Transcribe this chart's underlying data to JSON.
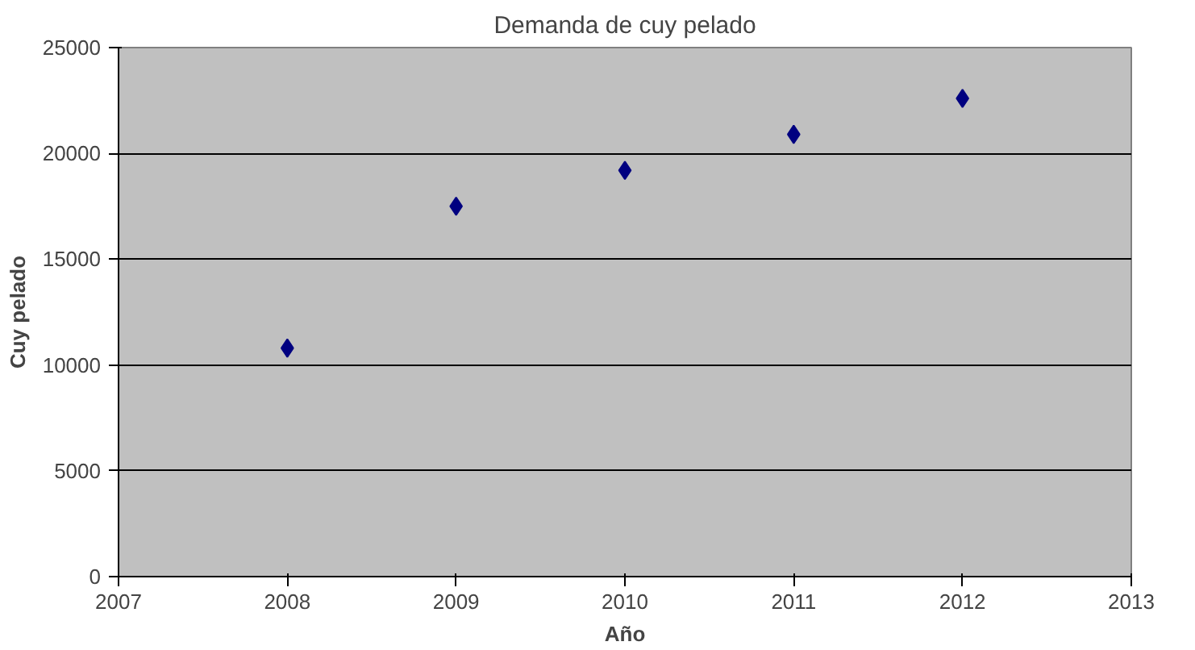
{
  "chart_data": {
    "type": "scatter",
    "title": "Demanda de cuy pelado",
    "xlabel": "Año",
    "ylabel": "Cuy pelado",
    "x": [
      2008,
      2009,
      2010,
      2011,
      2012
    ],
    "series": [
      {
        "color": "#000080",
        "values": [
          10800,
          17500,
          19200,
          20900,
          22600
        ]
      }
    ],
    "xlim": [
      2007,
      2013
    ],
    "xticks": [
      2007,
      2008,
      2009,
      2010,
      2011,
      2012,
      2013
    ],
    "ylim": [
      0,
      25000
    ],
    "yticks": [
      0,
      5000,
      10000,
      15000,
      20000,
      25000
    ],
    "grid": "y",
    "marker": "diamond"
  }
}
